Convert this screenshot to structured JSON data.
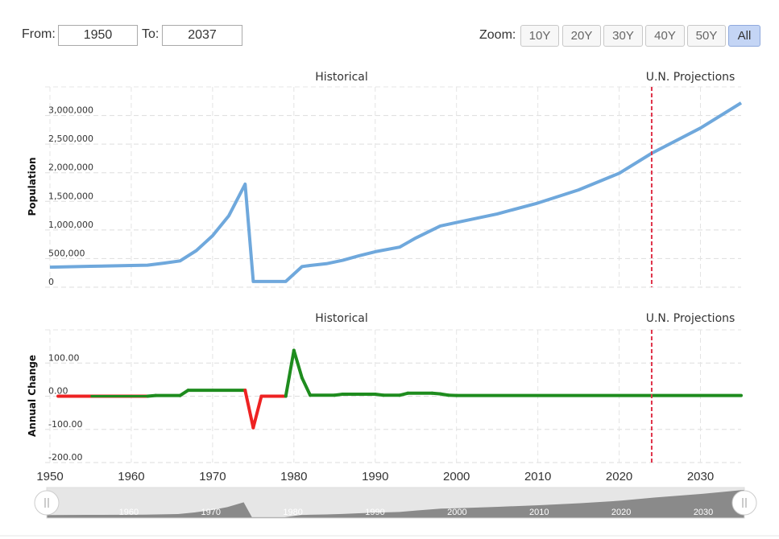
{
  "range": {
    "from_label": "From:",
    "from_value": "1950",
    "to_label": "To:",
    "to_value": "2037"
  },
  "zoom": {
    "label": "Zoom:",
    "buttons": [
      "10Y",
      "20Y",
      "30Y",
      "40Y",
      "50Y",
      "All"
    ],
    "active": "All"
  },
  "colors": {
    "population_line": "#6fa8dc",
    "change_positive": "#1e8c1e",
    "change_negative": "#ee2222",
    "projection_marker": "#e0334a",
    "navigator_fill": "#8a8a8a"
  },
  "chart_data": [
    {
      "type": "line",
      "section_labels": [
        "Historical",
        "U.N. Projections"
      ],
      "ylabel": "Population",
      "ylim": [
        0,
        3500000
      ],
      "yticks": [
        "0",
        "500,000",
        "1,000,000",
        "1,500,000",
        "2,000,000",
        "2,500,000",
        "3,000,000"
      ],
      "ytick_values": [
        0,
        500000,
        1000000,
        1500000,
        2000000,
        2500000,
        3000000
      ],
      "xlim": [
        1950,
        2035
      ],
      "projection_start": 2024,
      "series": [
        {
          "x": [
            1950,
            1955,
            1960,
            1962,
            1964,
            1966,
            1968,
            1970,
            1972,
            1974,
            1975,
            1976,
            1977,
            1978,
            1979,
            1980,
            1981,
            1982,
            1984,
            1986,
            1988,
            1990,
            1993,
            1995,
            1998,
            2000,
            2005,
            2010,
            2015,
            2020,
            2024,
            2030,
            2035
          ],
          "values": [
            350000,
            365000,
            380000,
            385000,
            420000,
            460000,
            640000,
            900000,
            1250000,
            1800000,
            100000,
            100000,
            100000,
            100000,
            100000,
            230000,
            360000,
            380000,
            410000,
            470000,
            550000,
            620000,
            700000,
            860000,
            1070000,
            1130000,
            1280000,
            1470000,
            1700000,
            1990000,
            2340000,
            2780000,
            3220000
          ]
        }
      ]
    },
    {
      "type": "line",
      "section_labels": [
        "Historical",
        "U.N. Projections"
      ],
      "ylabel": "Annual Change",
      "ylim": [
        -200,
        200
      ],
      "yticks": [
        "-200.00",
        "-100.00",
        "0.00",
        "100.00"
      ],
      "ytick_values": [
        -200,
        -100,
        0,
        100
      ],
      "xlim": [
        1950,
        2035
      ],
      "projection_start": 2024,
      "x_tick_labels": [
        "1950",
        "1960",
        "1970",
        "1980",
        "1990",
        "2000",
        "2010",
        "2020",
        "2030"
      ],
      "x_tick_values": [
        1950,
        1960,
        1970,
        1980,
        1990,
        2000,
        2010,
        2020,
        2030
      ],
      "series": [
        {
          "x": [
            1951,
            1955,
            1962,
            1963,
            1966,
            1967,
            1974,
            1975,
            1976,
            1979,
            1980,
            1981,
            1982,
            1985,
            1986,
            1990,
            1991,
            1993,
            1994,
            1997,
            1998,
            1999,
            2000,
            2035
          ],
          "values": [
            0,
            0,
            0,
            2,
            2,
            18,
            18,
            -95,
            0,
            0,
            138,
            55,
            3,
            3,
            6,
            6,
            3,
            3,
            9,
            9,
            7,
            3,
            2,
            2
          ]
        }
      ]
    }
  ],
  "navigator": {
    "tick_labels": [
      "1960",
      "1970",
      "1980",
      "1990",
      "2000",
      "2010",
      "2020",
      "2030"
    ],
    "tick_values": [
      1960,
      1970,
      1980,
      1990,
      2000,
      2010,
      2020,
      2030
    ]
  }
}
